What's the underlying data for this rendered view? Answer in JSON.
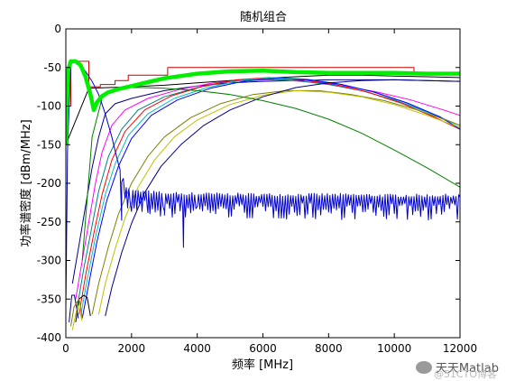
{
  "chart_data": {
    "type": "line",
    "title": "随机组合",
    "xlabel": "频率 [MHz]",
    "ylabel": "功率谱密度 [dBm/MHz]",
    "xlim": [
      0,
      12000
    ],
    "ylim": [
      -400,
      0
    ],
    "xticks": [
      0,
      2000,
      4000,
      6000,
      8000,
      10000,
      12000
    ],
    "yticks": [
      0,
      -50,
      -100,
      -150,
      -200,
      -250,
      -300,
      -350,
      -400
    ],
    "grid": false,
    "series": [
      {
        "color": "#cc0000",
        "width": 1,
        "kind": "step",
        "x": [
          0,
          150,
          150,
          700,
          700,
          1050,
          1050,
          1500,
          1500,
          1900,
          1900,
          3100,
          3100,
          10600,
          10600,
          12000
        ],
        "y": [
          -100,
          -100,
          -42,
          -42,
          -75,
          -75,
          -72,
          -72,
          -67,
          -67,
          -60,
          -60,
          -50,
          -50,
          -57,
          -57
        ]
      },
      {
        "color": "#000000",
        "width": 1,
        "x": [
          0,
          700,
          1300,
          2000,
          3000,
          4000,
          5000,
          6000,
          7000,
          8000,
          9000,
          10000,
          11000,
          12000
        ],
        "y": [
          -150,
          -77,
          -76,
          -75,
          -73,
          -70,
          -67,
          -64,
          -62,
          -60,
          -60,
          -61,
          -62,
          -63
        ]
      },
      {
        "color": "#000080",
        "width": 1,
        "x": [
          200,
          400,
          600,
          800,
          1000,
          1200,
          1500,
          2000,
          3000,
          4000,
          5000,
          6000,
          7000,
          8000,
          9000,
          10000,
          11000,
          12000
        ],
        "y": [
          -330,
          -280,
          -230,
          -180,
          -140,
          -110,
          -97,
          -90,
          -80,
          -74,
          -70,
          -68,
          -67,
          -66,
          -66,
          -66,
          -67,
          -68
        ]
      },
      {
        "color": "#ff00ff",
        "width": 1,
        "x": [
          300,
          500,
          700,
          900,
          1100,
          1400,
          1800,
          2500,
          3500,
          4500,
          5500,
          6500,
          7500,
          8500,
          9500,
          10500,
          11500,
          12000
        ],
        "y": [
          -350,
          -300,
          -250,
          -200,
          -160,
          -125,
          -105,
          -90,
          -78,
          -70,
          -66,
          -66,
          -69,
          -74,
          -82,
          -92,
          -105,
          -112
        ]
      },
      {
        "color": "#008080",
        "width": 1,
        "x": [
          350,
          550,
          800,
          1000,
          1300,
          1700,
          2200,
          3000,
          4000,
          5000,
          6000,
          7000,
          8000,
          9000,
          10000,
          11000,
          12000
        ],
        "y": [
          -360,
          -310,
          -255,
          -210,
          -165,
          -130,
          -105,
          -88,
          -76,
          -68,
          -65,
          -67,
          -72,
          -80,
          -92,
          -108,
          -125
        ]
      },
      {
        "color": "#ff0000",
        "width": 1,
        "x": [
          400,
          600,
          850,
          1100,
          1400,
          1800,
          2400,
          3200,
          4200,
          5200,
          6200,
          7200,
          8200,
          9200,
          10200,
          11200,
          12000
        ],
        "y": [
          -370,
          -320,
          -265,
          -215,
          -170,
          -133,
          -105,
          -87,
          -74,
          -66,
          -63,
          -66,
          -72,
          -82,
          -96,
          -114,
          -130
        ]
      },
      {
        "color": "#00bfbf",
        "width": 1,
        "x": [
          450,
          650,
          900,
          1200,
          1500,
          1900,
          2500,
          3300,
          4300,
          5300,
          6300,
          7300,
          8300,
          9300,
          10300,
          11300,
          12000
        ],
        "y": [
          -372,
          -325,
          -270,
          -215,
          -175,
          -138,
          -110,
          -90,
          -76,
          -67,
          -63,
          -65,
          -71,
          -81,
          -95,
          -113,
          -128
        ]
      },
      {
        "color": "#0000ff",
        "width": 1,
        "x": [
          500,
          700,
          950,
          1250,
          1600,
          2000,
          2600,
          3400,
          4400,
          5400,
          6400,
          7400,
          8400,
          9400,
          10400,
          11400,
          12000
        ],
        "y": [
          -375,
          -330,
          -275,
          -222,
          -178,
          -142,
          -112,
          -92,
          -77,
          -68,
          -64,
          -66,
          -72,
          -82,
          -96,
          -114,
          -130
        ]
      },
      {
        "color": "#808000",
        "width": 1,
        "x": [
          800,
          1000,
          1300,
          1600,
          2000,
          2500,
          3000,
          3800,
          4700,
          5700,
          6700,
          7700,
          8700,
          9700,
          10700,
          11700,
          12000
        ],
        "y": [
          -370,
          -330,
          -282,
          -240,
          -200,
          -165,
          -140,
          -115,
          -97,
          -85,
          -80,
          -80,
          -85,
          -93,
          -105,
          -120,
          -125
        ]
      },
      {
        "color": "#bfbf00",
        "width": 1,
        "x": [
          1000,
          1200,
          1500,
          1800,
          2200,
          2700,
          3300,
          4000,
          5000,
          6000,
          7000,
          8000,
          9000,
          10000,
          11000,
          12000
        ],
        "y": [
          -370,
          -330,
          -285,
          -245,
          -205,
          -170,
          -140,
          -118,
          -98,
          -86,
          -80,
          -82,
          -88,
          -98,
          -112,
          -128
        ]
      },
      {
        "color": "#000080",
        "width": 1,
        "x": [
          1200,
          1400,
          1700,
          2000,
          2400,
          2900,
          3500,
          4200,
          5000,
          6000,
          7000,
          8000,
          9000,
          10000,
          11000,
          12000
        ],
        "y": [
          -372,
          -335,
          -290,
          -252,
          -212,
          -178,
          -150,
          -125,
          -105,
          -88,
          -76,
          -70,
          -67,
          -66,
          -67,
          -68
        ]
      },
      {
        "color": "#008000",
        "width": 1,
        "x": [
          500,
          800,
          1100,
          1400,
          1800,
          2300,
          3000,
          4000,
          5000,
          6000,
          7000,
          8000,
          9000,
          10000,
          11000,
          12000
        ],
        "y": [
          -300,
          -140,
          -90,
          -80,
          -76,
          -76,
          -77,
          -80,
          -85,
          -93,
          -103,
          -117,
          -135,
          -157,
          -180,
          -205
        ]
      },
      {
        "color": "#0000cc",
        "width": 1,
        "kind": "noisy",
        "x": [
          0,
          50,
          150,
          300,
          450,
          600,
          800,
          1000,
          1200,
          1400,
          1600,
          1800,
          2000,
          3000,
          4000,
          6000,
          8000,
          10000,
          12000
        ],
        "y": [
          -360,
          -160,
          -45,
          -43,
          -48,
          -55,
          -68,
          -85,
          -110,
          -140,
          -175,
          -205,
          -212,
          -215,
          -216,
          -217,
          -217,
          -218,
          -218
        ]
      },
      {
        "color": "#00ee00",
        "width": 4.5,
        "x": [
          0,
          60,
          150,
          300,
          450,
          600,
          750,
          850,
          950,
          1100,
          1300,
          1600,
          2000,
          2500,
          3000,
          3500,
          4000,
          5000,
          6000,
          7000,
          8000,
          9000,
          10000,
          11000,
          12000
        ],
        "y": [
          -150,
          -55,
          -42,
          -42,
          -47,
          -62,
          -85,
          -105,
          -95,
          -87,
          -82,
          -78,
          -74,
          -69,
          -64,
          -61,
          -58,
          -55,
          -54,
          -56,
          -57,
          -57,
          -57,
          -58,
          -58
        ]
      },
      {
        "color": "#000000",
        "width": 1,
        "x": [
          300,
          400,
          550,
          650,
          700,
          750
        ],
        "y": [
          -380,
          -350,
          -345,
          -348,
          -360,
          -372
        ]
      },
      {
        "color": "#000080",
        "width": 1,
        "x": [
          100,
          180,
          260,
          320,
          380
        ],
        "y": [
          -380,
          -345,
          -345,
          -360,
          -375
        ]
      },
      {
        "color": "#808000",
        "width": 1,
        "x": [
          150,
          250,
          400,
          450,
          500
        ],
        "y": [
          -385,
          -360,
          -350,
          -360,
          -375
        ]
      },
      {
        "color": "#bfbf00",
        "width": 1,
        "x": [
          200,
          320,
          420,
          480
        ],
        "y": [
          -390,
          -365,
          -355,
          -378
        ]
      }
    ]
  },
  "watermark": {
    "text": "天天Matlab",
    "sub": "@51CTO博客"
  }
}
